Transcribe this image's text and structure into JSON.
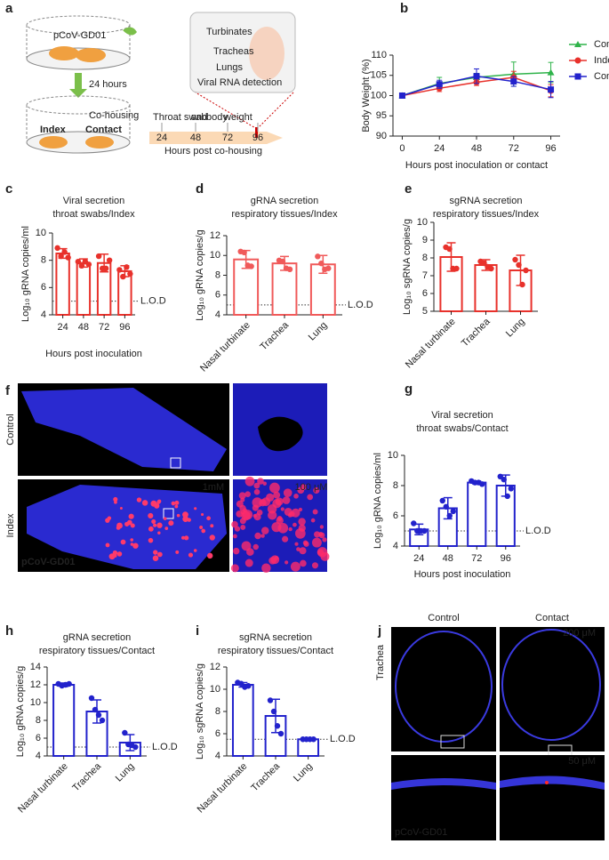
{
  "panel_labels": [
    "a",
    "b",
    "c",
    "d",
    "e",
    "f",
    "g",
    "h",
    "i",
    "j"
  ],
  "diagram": {
    "top_label": "pCoV-GD01",
    "arrow_label": "24 hours",
    "cohousing": "Co-housing",
    "index": "Index",
    "contact": "Contact",
    "timeline_words": [
      "Throat swab",
      "and",
      "body",
      "weight"
    ],
    "timeline_ticks": [
      "24",
      "48",
      "72",
      "96"
    ],
    "timeline_label": "Hours post co-housing",
    "organs": [
      "Turbinates",
      "Tracheas",
      "Lungs"
    ],
    "detection": "Viral RNA detection"
  },
  "histology_f": {
    "rows": [
      "Control",
      "Index"
    ],
    "scale_big": "1mM",
    "scale_zoom": "100 μM",
    "stain": "pCoV-GD01"
  },
  "histology_j": {
    "columns": [
      "Control",
      "Contact"
    ],
    "row": "Trachea",
    "scale_top": "200 μM",
    "scale_bottom": "50 μM",
    "stain": "pCoV-GD01"
  },
  "chart_data": [
    {
      "type": "line",
      "ylabel": "Body Weight (%)",
      "xlabel": "Hours post inoculation or contact",
      "x": [
        0,
        24,
        48,
        72,
        96
      ],
      "xlim": [
        -6,
        102
      ],
      "xticks": [
        0,
        24,
        48,
        72,
        96
      ],
      "ylim": [
        90,
        110
      ],
      "yticks": [
        90,
        95,
        100,
        105,
        110
      ],
      "legend": "right",
      "series": [
        {
          "name": "Control",
          "color": "#2fb34a",
          "marker": "triangle",
          "values": [
            100,
            103,
            104.5,
            105.3,
            105.7
          ],
          "errors": [
            0,
            1.5,
            1,
            3,
            2.5
          ]
        },
        {
          "name": "Index",
          "color": "#e8312b",
          "marker": "circle",
          "values": [
            100,
            101.8,
            103.3,
            104.5,
            101.2
          ],
          "errors": [
            0,
            0.8,
            0.8,
            1.5,
            1.5
          ]
        },
        {
          "name": "Contact",
          "color": "#2222cc",
          "marker": "square",
          "values": [
            100,
            102.8,
            104.8,
            103.5,
            101.5
          ],
          "errors": [
            0,
            1,
            1.8,
            1.2,
            2
          ]
        }
      ]
    },
    {
      "type": "bar",
      "title": [
        "Viral secretion",
        "throat swabs/Index"
      ],
      "ylabel": "Log₁₀ gRNA copies/ml",
      "xlabel": "Hours post inoculation",
      "categories": [
        "24",
        "48",
        "72",
        "96"
      ],
      "values": [
        8.5,
        7.8,
        7.8,
        7.2
      ],
      "errors": [
        0.35,
        0.3,
        0.65,
        0.4
      ],
      "points": [
        [
          8.9,
          8.3,
          8.6,
          8.2
        ],
        [
          7.9,
          7.6,
          7.9,
          7.7
        ],
        [
          8.3,
          7.4,
          7.4,
          8.0
        ],
        [
          7.3,
          6.8,
          7.5,
          7.0
        ]
      ],
      "color": "#e8312b",
      "ylim": [
        4,
        10
      ],
      "yticks": [
        4,
        6,
        8,
        10
      ],
      "lod": 5,
      "lod_label": "L.O.D"
    },
    {
      "type": "bar",
      "title": [
        "gRNA secretion",
        "respiratory tissues/Index"
      ],
      "ylabel": "Log₁₀ gRNA copies/g",
      "categories": [
        "Nasal turbinate",
        "Trachea",
        "Lung"
      ],
      "values": [
        9.6,
        9.2,
        9.1
      ],
      "errors": [
        0.9,
        0.7,
        0.9
      ],
      "points": [
        [
          10.4,
          10.3,
          9.0,
          8.9
        ],
        [
          9.5,
          9.4,
          8.7,
          8.6
        ],
        [
          9.9,
          9.2,
          8.6,
          8.7
        ]
      ],
      "color": "#f05a5a",
      "ylim": [
        4,
        12
      ],
      "yticks": [
        4,
        6,
        8,
        10,
        12
      ],
      "lod": 5,
      "lod_label": "L.O.D"
    },
    {
      "type": "bar",
      "title": [
        "sgRNA secretion",
        "respiratory tissues/Index"
      ],
      "ylabel": "Log₁₀ sgRNA copies/g",
      "categories": [
        "Nasal turbinate",
        "Trachea",
        "Lung"
      ],
      "values": [
        8.05,
        7.6,
        7.3
      ],
      "errors": [
        0.8,
        0.3,
        0.85
      ],
      "points": [
        [
          8.6,
          8.5,
          7.4,
          7.4
        ],
        [
          7.8,
          7.7,
          7.5,
          7.4
        ],
        [
          7.9,
          7.6,
          6.5,
          7.3
        ]
      ],
      "color": "#e8312b",
      "ylim": [
        5,
        10
      ],
      "yticks": [
        5,
        6,
        7,
        8,
        9,
        10
      ]
    },
    {
      "type": "bar",
      "title": [
        "Viral secretion",
        "throat swabs/Contact"
      ],
      "ylabel": "Log₁₀ gRNA copies/ml",
      "xlabel": "Hours post inoculation",
      "categories": [
        "24",
        "48",
        "72",
        "96"
      ],
      "values": [
        5.1,
        6.5,
        8.2,
        8.0
      ],
      "errors": [
        0.35,
        0.7,
        0.1,
        0.7
      ],
      "points": [
        [
          5.5,
          5.0,
          5.0,
          5.0
        ],
        [
          7.0,
          6.6,
          6.0,
          6.3
        ],
        [
          8.3,
          8.2,
          8.2,
          8.1
        ],
        [
          8.6,
          8.4,
          7.3,
          7.8
        ]
      ],
      "color": "#2222cc",
      "ylim": [
        4,
        10
      ],
      "yticks": [
        4,
        6,
        8,
        10
      ],
      "lod": 5,
      "lod_label": "L.O.D"
    },
    {
      "type": "bar",
      "title": [
        "gRNA secretion",
        "respiratory tissues/Contact"
      ],
      "ylabel": "Log₁₀ gRNA copies/g",
      "categories": [
        "Nasal turbinate",
        "Trachea",
        "Lung"
      ],
      "values": [
        12.0,
        9.0,
        5.5
      ],
      "errors": [
        0.2,
        1.3,
        0.9
      ],
      "points": [
        [
          12.1,
          11.9,
          12.0,
          12.1
        ],
        [
          10.5,
          9.2,
          8.6,
          8.0
        ],
        [
          6.6,
          5.3,
          5.2,
          5.0
        ]
      ],
      "color": "#2222cc",
      "ylim": [
        4,
        14
      ],
      "yticks": [
        4,
        6,
        8,
        10,
        12,
        14
      ],
      "lod": 5,
      "lod_label": "L.O.D"
    },
    {
      "type": "bar",
      "title": [
        "sgRNA secretion",
        "respiratory tissues/Contact"
      ],
      "ylabel": "Log₁₀ sgRNA copies/g",
      "categories": [
        "Nasal turbinate",
        "Trachea",
        "Lung"
      ],
      "values": [
        10.4,
        7.6,
        5.5
      ],
      "errors": [
        0.2,
        1.5,
        0
      ],
      "points": [
        [
          10.6,
          10.5,
          10.2,
          10.3
        ],
        [
          9.0,
          8.0,
          6.7,
          6.0
        ],
        [
          5.5,
          5.5,
          5.5,
          5.5
        ]
      ],
      "color": "#2222cc",
      "ylim": [
        4,
        12
      ],
      "yticks": [
        4,
        6,
        8,
        10,
        12
      ],
      "lod": 5.5,
      "lod_label": "L.O.D"
    }
  ]
}
